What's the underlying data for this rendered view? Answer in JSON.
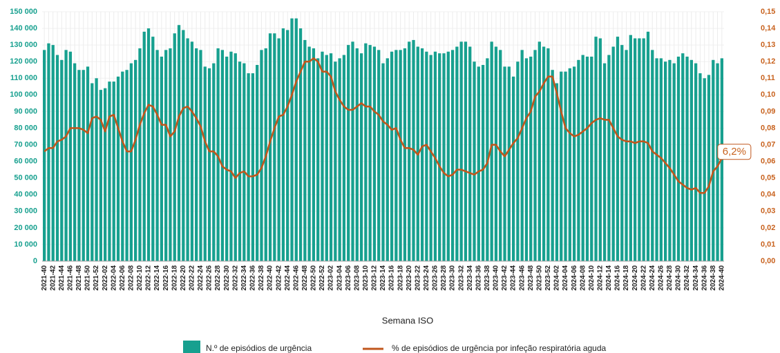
{
  "chart_data": {
    "type": "bar",
    "x_label": "Semana ISO",
    "categories": [
      "2021-40",
      null,
      "2021-42",
      null,
      "2021-44",
      null,
      "2021-46",
      null,
      "2021-48",
      null,
      "2021-50",
      null,
      "2021-52",
      null,
      "2022-02",
      null,
      "2022-04",
      null,
      "2022-06",
      null,
      "2022-08",
      null,
      "2022-10",
      null,
      "2022-12",
      null,
      "2022-14",
      null,
      "2022-16",
      null,
      "2022-18",
      null,
      "2022-20",
      null,
      "2022-22",
      null,
      "2022-24",
      null,
      "2022-26",
      null,
      "2022-28",
      null,
      "2022-30",
      null,
      "2022-32",
      null,
      "2022-34",
      null,
      "2022-36",
      null,
      "2022-38",
      null,
      "2022-40",
      null,
      "2022-42",
      null,
      "2022-44",
      null,
      "2022-46",
      null,
      "2022-48",
      null,
      "2022-50",
      null,
      "2022-52",
      null,
      "2023-02",
      null,
      "2023-04",
      null,
      "2023-06",
      null,
      "2023-08",
      null,
      "2023-10",
      null,
      "2023-12",
      null,
      "2023-14",
      null,
      "2023-16",
      null,
      "2023-18",
      null,
      "2023-20",
      null,
      "2023-22",
      null,
      "2023-24",
      null,
      "2023-26",
      null,
      "2023-28",
      null,
      "2023-30",
      null,
      "2023-32",
      null,
      "2023-34",
      null,
      "2023-36",
      null,
      "2023-38",
      null,
      "2023-40",
      null,
      "2023-42",
      null,
      "2023-44",
      null,
      "2023-46",
      null,
      "2023-48",
      null,
      "2023-50",
      null,
      "2023-52",
      null,
      "2024-02",
      null,
      "2024-04",
      null,
      "2024-06",
      null,
      "2024-08",
      null,
      "2024-10",
      null,
      "2024-12",
      null,
      "2024-14",
      null,
      "2024-16",
      null,
      "2024-18",
      null,
      "2024-20",
      null,
      "2024-22",
      null,
      "2024-24",
      null,
      "2024-26",
      null,
      "2024-28",
      null,
      "2024-30",
      null,
      "2024-32",
      null,
      "2024-34",
      null,
      "2024-36",
      null,
      "2024-38",
      null,
      "2024-40"
    ],
    "series": [
      {
        "name": "N.º de episódios de urgência",
        "type": "bar",
        "color": "#17a08f",
        "values": [
          127000,
          131000,
          130000,
          124000,
          121000,
          127000,
          126000,
          119000,
          115000,
          115000,
          117000,
          107000,
          110000,
          103000,
          104000,
          108000,
          108000,
          111000,
          114000,
          115000,
          119000,
          121000,
          128000,
          138000,
          140000,
          135000,
          127000,
          123000,
          127000,
          128000,
          137000,
          142000,
          139000,
          134000,
          132000,
          128000,
          127000,
          117000,
          116000,
          119000,
          128000,
          127000,
          123000,
          126000,
          125000,
          120000,
          119000,
          113000,
          113000,
          118000,
          127000,
          128000,
          137000,
          137000,
          134000,
          140000,
          139000,
          146000,
          146000,
          140000,
          133000,
          129000,
          128000,
          122000,
          126000,
          124000,
          125000,
          120000,
          122000,
          124000,
          130000,
          132000,
          128000,
          125000,
          131000,
          130000,
          129000,
          127000,
          119000,
          122000,
          126000,
          127000,
          127000,
          128000,
          132000,
          133000,
          129000,
          128000,
          126000,
          124000,
          126000,
          125000,
          125000,
          126000,
          127000,
          129000,
          132000,
          132000,
          129000,
          120000,
          117000,
          118000,
          122000,
          132000,
          129000,
          127000,
          117000,
          117000,
          111000,
          120000,
          127000,
          122000,
          123000,
          127000,
          132000,
          129000,
          128000,
          115000,
          107000,
          114000,
          114000,
          116000,
          117000,
          121000,
          124000,
          123000,
          123000,
          135000,
          134000,
          119000,
          124000,
          129000,
          135000,
          130000,
          127000,
          136000,
          134000,
          134000,
          134000,
          138000,
          127000,
          122000,
          122000,
          120000,
          121000,
          119000,
          123000,
          125000,
          123000,
          121000,
          119000,
          113000,
          110000,
          112000,
          121000,
          119000,
          122000
        ]
      },
      {
        "name": "% de episódios de urgência por infeção respiratória aguda",
        "type": "line",
        "axis": "y2",
        "color": "#c0561c",
        "values": [
          0.066,
          0.068,
          0.068,
          0.072,
          0.073,
          0.075,
          0.08,
          0.08,
          0.08,
          0.079,
          0.077,
          0.086,
          0.087,
          0.085,
          0.078,
          0.087,
          0.088,
          0.08,
          0.072,
          0.066,
          0.066,
          0.073,
          0.082,
          0.089,
          0.094,
          0.093,
          0.088,
          0.082,
          0.082,
          0.075,
          0.078,
          0.087,
          0.092,
          0.093,
          0.09,
          0.086,
          0.081,
          0.072,
          0.066,
          0.066,
          0.063,
          0.057,
          0.055,
          0.054,
          0.05,
          0.053,
          0.054,
          0.051,
          0.051,
          0.052,
          0.056,
          0.063,
          0.072,
          0.08,
          0.087,
          0.088,
          0.093,
          0.1,
          0.108,
          0.114,
          0.12,
          0.12,
          0.122,
          0.12,
          0.114,
          0.114,
          0.111,
          0.102,
          0.097,
          0.093,
          0.091,
          0.091,
          0.093,
          0.095,
          0.093,
          0.093,
          0.09,
          0.088,
          0.084,
          0.082,
          0.079,
          0.08,
          0.073,
          0.068,
          0.068,
          0.067,
          0.064,
          0.069,
          0.07,
          0.066,
          0.062,
          0.057,
          0.053,
          0.051,
          0.052,
          0.055,
          0.055,
          0.054,
          0.053,
          0.052,
          0.054,
          0.055,
          0.059,
          0.07,
          0.07,
          0.066,
          0.063,
          0.067,
          0.071,
          0.074,
          0.08,
          0.086,
          0.09,
          0.099,
          0.102,
          0.107,
          0.111,
          0.111,
          0.101,
          0.09,
          0.08,
          0.077,
          0.075,
          0.076,
          0.078,
          0.08,
          0.083,
          0.085,
          0.086,
          0.085,
          0.085,
          0.08,
          0.075,
          0.073,
          0.072,
          0.072,
          0.071,
          0.072,
          0.072,
          0.071,
          0.066,
          0.064,
          0.062,
          0.059,
          0.056,
          0.052,
          0.048,
          0.046,
          0.044,
          0.043,
          0.044,
          0.041,
          0.041,
          0.045,
          0.054,
          0.057,
          0.062
        ]
      }
    ],
    "annotation": "6,2%",
    "ylim": [
      0,
      150000
    ],
    "yticks": [
      0,
      {
        "value": 10000,
        "label": "10 000"
      },
      {
        "value": 20000,
        "label": "20 000"
      },
      {
        "value": 30000,
        "label": "30 000"
      },
      {
        "value": 40000,
        "label": "40 000"
      },
      {
        "value": 50000,
        "label": "50 000"
      },
      {
        "value": 60000,
        "label": "60 000"
      },
      {
        "value": 70000,
        "label": "70 000"
      },
      {
        "value": 80000,
        "label": "80 000"
      },
      {
        "value": 90000,
        "label": "90 000"
      },
      {
        "value": 100000,
        "label": "100 000"
      },
      {
        "value": 110000,
        "label": "110 000"
      },
      {
        "value": 120000,
        "label": "120 000"
      },
      {
        "value": 130000,
        "label": "130 000"
      },
      {
        "value": 140000,
        "label": "140 000"
      },
      {
        "value": 150000,
        "label": "150 000"
      }
    ],
    "y2lim": [
      0,
      0.15
    ],
    "y2ticks": [
      {
        "value": 0,
        "label": "0,00"
      },
      {
        "value": 0.01,
        "label": "0,01"
      },
      {
        "value": 0.02,
        "label": "0,02"
      },
      {
        "value": 0.03,
        "label": "0,03"
      },
      {
        "value": 0.04,
        "label": "0,04"
      },
      {
        "value": 0.05,
        "label": "0,05"
      },
      {
        "value": 0.06,
        "label": "0,06"
      },
      {
        "value": 0.07,
        "label": "0,07"
      },
      {
        "value": 0.08,
        "label": "0,08"
      },
      {
        "value": 0.09,
        "label": "0,09"
      },
      {
        "value": 0.1,
        "label": "0,10"
      },
      {
        "value": 0.11,
        "label": "0,11"
      },
      {
        "value": 0.12,
        "label": "0,12"
      },
      {
        "value": 0.13,
        "label": "0,13"
      },
      {
        "value": 0.14,
        "label": "0,14"
      },
      {
        "value": 0.15,
        "label": "0,15"
      }
    ],
    "legend": "bottom"
  }
}
